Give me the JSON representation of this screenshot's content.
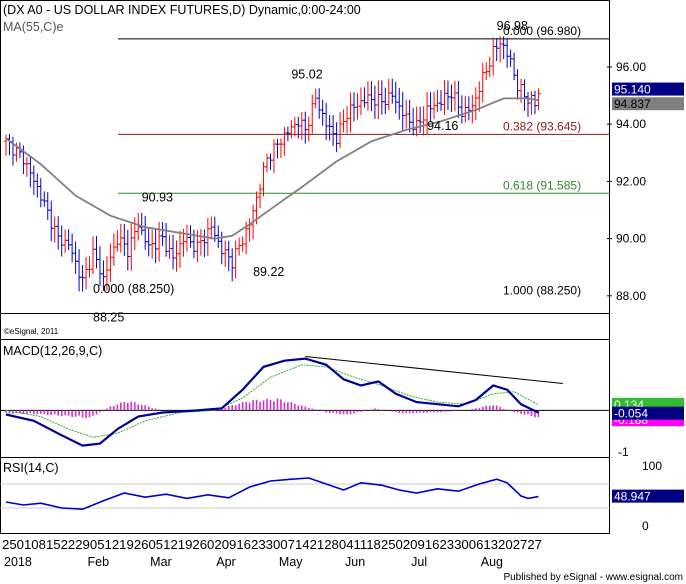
{
  "header": {
    "title": "(DX A0 - US DOLLAR INDEX FUTURES,D) Dynamic,0:00-24:00",
    "ma_label": "MA(55,C)e",
    "copyright": "©eSignal, 2011",
    "publisher": "Published by eSignal - www.esignal.com"
  },
  "colors": {
    "up": "#ff0000",
    "down": "#0000cc",
    "ma": "#808080",
    "fib_red": "#8b1a1a",
    "fib_green": "#2e8b2e",
    "macd_line": "#000099",
    "macd_signal": "#33aa33",
    "macd_hist": "#cc33cc",
    "rsi_line": "#0000cc"
  },
  "chart_data": [
    {
      "type": "candlestick",
      "panel": "price",
      "ylim": [
        87.4,
        98.2
      ],
      "yticks": [
        "96.00",
        "94.00",
        "92.00",
        "90.00",
        "88.00"
      ],
      "ytick_values": [
        96,
        94,
        92,
        90,
        88
      ],
      "x_months": [
        "2018",
        "Feb",
        "Mar",
        "Apr",
        "May",
        "Jun",
        "Jul",
        "Aug"
      ],
      "x_dates": "25010815222905121926051219260209162330071421280411182502091623300613202727",
      "key_points": [
        {
          "t": 0,
          "v": 93.4
        },
        {
          "t": 5,
          "v": 92.8
        },
        {
          "t": 10,
          "v": 91.5
        },
        {
          "t": 15,
          "v": 90.0
        },
        {
          "t": 18,
          "v": 89.8
        },
        {
          "t": 22,
          "v": 88.5
        },
        {
          "t": 25,
          "v": 89.5
        },
        {
          "t": 28,
          "v": 88.6
        },
        {
          "t": 32,
          "v": 90.0
        },
        {
          "t": 35,
          "v": 89.6
        },
        {
          "t": 38,
          "v": 90.5
        },
        {
          "t": 41,
          "v": 89.7
        },
        {
          "t": 45,
          "v": 90.0
        },
        {
          "t": 48,
          "v": 89.3
        },
        {
          "t": 51,
          "v": 90.0
        },
        {
          "t": 55,
          "v": 89.7
        },
        {
          "t": 59,
          "v": 90.4
        },
        {
          "t": 62,
          "v": 89.6
        },
        {
          "t": 65,
          "v": 89.2
        },
        {
          "t": 70,
          "v": 90.5
        },
        {
          "t": 75,
          "v": 92.8
        },
        {
          "t": 80,
          "v": 93.6
        },
        {
          "t": 84,
          "v": 94.1
        },
        {
          "t": 86,
          "v": 93.8
        },
        {
          "t": 89,
          "v": 94.9
        },
        {
          "t": 92,
          "v": 94.0
        },
        {
          "t": 95,
          "v": 93.5
        },
        {
          "t": 98,
          "v": 94.4
        },
        {
          "t": 101,
          "v": 94.7
        },
        {
          "t": 104,
          "v": 94.9
        },
        {
          "t": 108,
          "v": 94.8
        },
        {
          "t": 111,
          "v": 95.0
        },
        {
          "t": 115,
          "v": 94.2
        },
        {
          "t": 118,
          "v": 93.9
        },
        {
          "t": 121,
          "v": 94.5
        },
        {
          "t": 125,
          "v": 94.8
        },
        {
          "t": 128,
          "v": 95.1
        },
        {
          "t": 131,
          "v": 94.4
        },
        {
          "t": 134,
          "v": 94.6
        },
        {
          "t": 137,
          "v": 95.6
        },
        {
          "t": 140,
          "v": 96.5
        },
        {
          "t": 142,
          "v": 96.9
        },
        {
          "t": 145,
          "v": 96.2
        },
        {
          "t": 147,
          "v": 95.3
        },
        {
          "t": 150,
          "v": 94.9
        },
        {
          "t": 152,
          "v": 94.7
        },
        {
          "t": 153,
          "v": 95.14
        }
      ],
      "ma_points": [
        {
          "t": 0,
          "v": 93.5
        },
        {
          "t": 10,
          "v": 92.6
        },
        {
          "t": 20,
          "v": 91.5
        },
        {
          "t": 30,
          "v": 90.8
        },
        {
          "t": 40,
          "v": 90.4
        },
        {
          "t": 50,
          "v": 90.2
        },
        {
          "t": 60,
          "v": 90.0
        },
        {
          "t": 65,
          "v": 90.1
        },
        {
          "t": 70,
          "v": 90.5
        },
        {
          "t": 78,
          "v": 91.2
        },
        {
          "t": 85,
          "v": 91.8
        },
        {
          "t": 95,
          "v": 92.7
        },
        {
          "t": 105,
          "v": 93.4
        },
        {
          "t": 115,
          "v": 93.8
        },
        {
          "t": 125,
          "v": 94.1
        },
        {
          "t": 135,
          "v": 94.5
        },
        {
          "t": 143,
          "v": 94.9
        },
        {
          "t": 150,
          "v": 94.9
        },
        {
          "t": 153,
          "v": 94.837
        }
      ],
      "fib_levels": [
        {
          "label": "0.000 (96.980)",
          "value": 96.98,
          "color": "#000000"
        },
        {
          "label": "0.382 (93.645)",
          "value": 93.645,
          "color": "#8b1a1a"
        },
        {
          "label": "0.618 (91.585)",
          "value": 91.585,
          "color": "#2e8b2e"
        },
        {
          "label": "1.000 (88.250)",
          "value": 88.25,
          "color": "#000000"
        }
      ],
      "annotations": [
        {
          "text": "96.98",
          "t": 141,
          "v": 97.3
        },
        {
          "text": "95.02",
          "t": 82,
          "v": 95.6
        },
        {
          "text": "94.16",
          "t": 121,
          "v": 93.8
        },
        {
          "text": "90.93",
          "t": 39,
          "v": 91.3
        },
        {
          "text": "89.22",
          "t": 71,
          "v": 88.7
        },
        {
          "text": "0.000 (88.250)",
          "t": 25,
          "v": 88.1
        },
        {
          "text": "88.25",
          "t": 25,
          "v": 87.1
        }
      ],
      "last_values": {
        "close": "95.140",
        "ma": "94.837"
      }
    },
    {
      "type": "line",
      "panel": "macd",
      "label": "MACD(12,26,9,C)",
      "ylim": [
        -1.1,
        1.65
      ],
      "yticks": [
        "-1"
      ],
      "ytick_values": [
        -1
      ],
      "macd_points": [
        {
          "t": 0,
          "v": -0.1
        },
        {
          "t": 8,
          "v": -0.25
        },
        {
          "t": 16,
          "v": -0.6
        },
        {
          "t": 22,
          "v": -0.85
        },
        {
          "t": 27,
          "v": -0.8
        },
        {
          "t": 32,
          "v": -0.45
        },
        {
          "t": 38,
          "v": -0.15
        },
        {
          "t": 45,
          "v": -0.05
        },
        {
          "t": 55,
          "v": 0.0
        },
        {
          "t": 62,
          "v": 0.05
        },
        {
          "t": 68,
          "v": 0.5
        },
        {
          "t": 74,
          "v": 1.05
        },
        {
          "t": 80,
          "v": 1.2
        },
        {
          "t": 86,
          "v": 1.25
        },
        {
          "t": 92,
          "v": 1.1
        },
        {
          "t": 97,
          "v": 0.75
        },
        {
          "t": 102,
          "v": 0.6
        },
        {
          "t": 107,
          "v": 0.7
        },
        {
          "t": 112,
          "v": 0.4
        },
        {
          "t": 118,
          "v": 0.2
        },
        {
          "t": 124,
          "v": 0.15
        },
        {
          "t": 130,
          "v": 0.1
        },
        {
          "t": 135,
          "v": 0.25
        },
        {
          "t": 140,
          "v": 0.6
        },
        {
          "t": 144,
          "v": 0.5
        },
        {
          "t": 148,
          "v": 0.15
        },
        {
          "t": 153,
          "v": -0.054
        }
      ],
      "signal_points": [
        {
          "t": 0,
          "v": 0.0
        },
        {
          "t": 10,
          "v": -0.15
        },
        {
          "t": 18,
          "v": -0.45
        },
        {
          "t": 25,
          "v": -0.65
        },
        {
          "t": 32,
          "v": -0.55
        },
        {
          "t": 40,
          "v": -0.25
        },
        {
          "t": 50,
          "v": -0.05
        },
        {
          "t": 60,
          "v": 0.0
        },
        {
          "t": 68,
          "v": 0.3
        },
        {
          "t": 76,
          "v": 0.8
        },
        {
          "t": 85,
          "v": 1.1
        },
        {
          "t": 92,
          "v": 1.05
        },
        {
          "t": 100,
          "v": 0.8
        },
        {
          "t": 108,
          "v": 0.6
        },
        {
          "t": 116,
          "v": 0.35
        },
        {
          "t": 124,
          "v": 0.2
        },
        {
          "t": 132,
          "v": 0.15
        },
        {
          "t": 140,
          "v": 0.4
        },
        {
          "t": 146,
          "v": 0.45
        },
        {
          "t": 153,
          "v": 0.134
        }
      ],
      "hist_points": [
        {
          "t": 0,
          "v": -0.08
        },
        {
          "t": 10,
          "v": -0.1
        },
        {
          "t": 18,
          "v": -0.15
        },
        {
          "t": 24,
          "v": -0.2
        },
        {
          "t": 30,
          "v": 0.1
        },
        {
          "t": 35,
          "v": 0.25
        },
        {
          "t": 45,
          "v": 0.0
        },
        {
          "t": 60,
          "v": 0.02
        },
        {
          "t": 70,
          "v": 0.25
        },
        {
          "t": 78,
          "v": 0.3
        },
        {
          "t": 86,
          "v": 0.1
        },
        {
          "t": 92,
          "v": -0.05
        },
        {
          "t": 98,
          "v": -0.12
        },
        {
          "t": 106,
          "v": 0.05
        },
        {
          "t": 114,
          "v": -0.08
        },
        {
          "t": 124,
          "v": -0.05
        },
        {
          "t": 132,
          "v": 0.0
        },
        {
          "t": 140,
          "v": 0.15
        },
        {
          "t": 146,
          "v": -0.05
        },
        {
          "t": 153,
          "v": -0.188
        }
      ],
      "trendline": [
        {
          "t": 86,
          "v": 1.3
        },
        {
          "t": 160,
          "v": 0.65
        }
      ],
      "last_values": {
        "signal": "0.134",
        "macd": "-0.054",
        "hist": "-0.188"
      }
    },
    {
      "type": "line",
      "panel": "rsi",
      "label": "RSI(14,C)",
      "ylim": [
        -10,
        110
      ],
      "yticks": [
        "100",
        "0"
      ],
      "ytick_values": [
        100,
        0
      ],
      "rsi_points": [
        {
          "t": 0,
          "v": 40
        },
        {
          "t": 5,
          "v": 35
        },
        {
          "t": 10,
          "v": 38
        },
        {
          "t": 16,
          "v": 30
        },
        {
          "t": 22,
          "v": 28
        },
        {
          "t": 28,
          "v": 42
        },
        {
          "t": 34,
          "v": 55
        },
        {
          "t": 40,
          "v": 48
        },
        {
          "t": 46,
          "v": 53
        },
        {
          "t": 52,
          "v": 46
        },
        {
          "t": 58,
          "v": 52
        },
        {
          "t": 64,
          "v": 47
        },
        {
          "t": 70,
          "v": 65
        },
        {
          "t": 76,
          "v": 75
        },
        {
          "t": 82,
          "v": 78
        },
        {
          "t": 87,
          "v": 80
        },
        {
          "t": 92,
          "v": 70
        },
        {
          "t": 97,
          "v": 60
        },
        {
          "t": 102,
          "v": 72
        },
        {
          "t": 108,
          "v": 68
        },
        {
          "t": 113,
          "v": 60
        },
        {
          "t": 118,
          "v": 55
        },
        {
          "t": 124,
          "v": 62
        },
        {
          "t": 130,
          "v": 58
        },
        {
          "t": 136,
          "v": 70
        },
        {
          "t": 141,
          "v": 78
        },
        {
          "t": 144,
          "v": 72
        },
        {
          "t": 148,
          "v": 50
        },
        {
          "t": 150,
          "v": 46
        },
        {
          "t": 153,
          "v": 48.947
        }
      ],
      "last_value": "48.947"
    }
  ]
}
